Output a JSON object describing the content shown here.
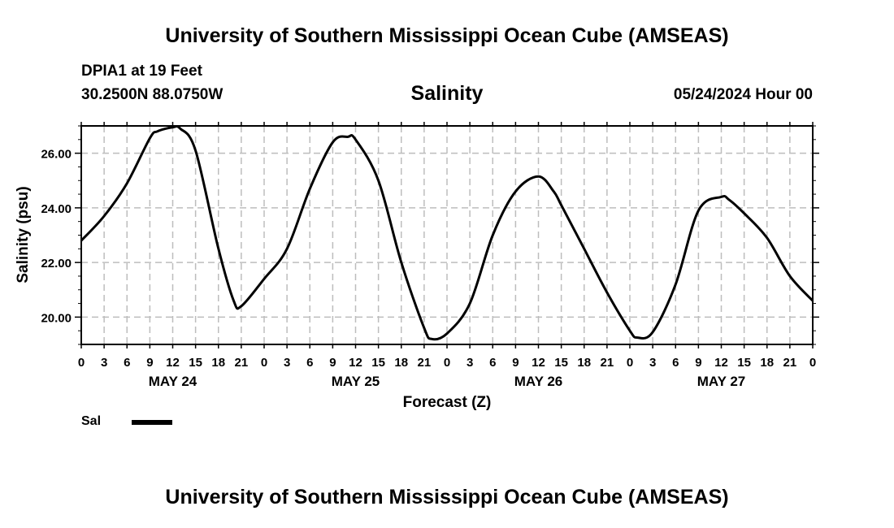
{
  "header": {
    "title": "University of Southern Mississippi Ocean Cube (AMSEAS)",
    "station": "DPIA1 at 19 Feet",
    "coords": "30.2500N  88.0750W",
    "variable_title": "Salinity",
    "datetime": "05/24/2024 Hour 00"
  },
  "footer": {
    "title": "University of Southern Mississippi Ocean Cube (AMSEAS)"
  },
  "legend": {
    "label": "Sal"
  },
  "chart_data": {
    "type": "line",
    "title": "Salinity",
    "xlabel": "Forecast (Z)",
    "ylabel": "Salinity (psu)",
    "x_unit": "hours from 05/24/2024 00Z",
    "xlim": [
      0,
      96
    ],
    "ylim": [
      19.0,
      27.0
    ],
    "grid": true,
    "x_ticks": [
      0,
      3,
      6,
      9,
      12,
      15,
      18,
      21,
      24,
      27,
      30,
      33,
      36,
      39,
      42,
      45,
      48,
      51,
      54,
      57,
      60,
      63,
      66,
      69,
      72,
      75,
      78,
      81,
      84,
      87,
      90,
      93,
      96
    ],
    "x_tick_labels": [
      "0",
      "3",
      "6",
      "9",
      "12",
      "15",
      "18",
      "21",
      "0",
      "3",
      "6",
      "9",
      "12",
      "15",
      "18",
      "21",
      "0",
      "3",
      "6",
      "9",
      "12",
      "15",
      "18",
      "21",
      "0",
      "3",
      "6",
      "9",
      "12",
      "15",
      "18",
      "21",
      "0"
    ],
    "y_ticks": [
      20,
      22,
      24,
      26
    ],
    "y_tick_labels": [
      "20.00",
      "22.00",
      "24.00",
      "26.00"
    ],
    "day_labels": [
      {
        "x": 12,
        "label": "MAY 24"
      },
      {
        "x": 36,
        "label": "MAY 25"
      },
      {
        "x": 60,
        "label": "MAY 26"
      },
      {
        "x": 84,
        "label": "MAY 27"
      }
    ],
    "series": [
      {
        "name": "Sal",
        "color": "#000000",
        "x": [
          0,
          3,
          6,
          9,
          10,
          12,
          13,
          15,
          18,
          20,
          21,
          24,
          27,
          30,
          33,
          35,
          36,
          39,
          42,
          45,
          46,
          48,
          51,
          54,
          57,
          60,
          62,
          63,
          66,
          69,
          72,
          73,
          75,
          78,
          81,
          84,
          85,
          87,
          90,
          93,
          96
        ],
        "values": [
          22.8,
          23.7,
          24.9,
          26.55,
          26.8,
          26.95,
          26.9,
          26.1,
          22.5,
          20.6,
          20.4,
          21.4,
          22.5,
          24.7,
          26.4,
          26.6,
          26.5,
          25.0,
          22.0,
          19.6,
          19.2,
          19.4,
          20.5,
          23.0,
          24.6,
          25.15,
          24.6,
          24.1,
          22.5,
          20.9,
          19.5,
          19.25,
          19.45,
          21.2,
          23.9,
          24.4,
          24.3,
          23.8,
          22.9,
          21.5,
          20.6
        ]
      }
    ]
  }
}
